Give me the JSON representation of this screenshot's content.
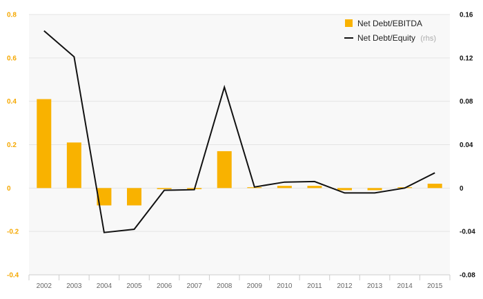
{
  "chart_data": {
    "type": "bar+line",
    "categories": [
      "2002",
      "2003",
      "2004",
      "2005",
      "2006",
      "2007",
      "2008",
      "2009",
      "2010",
      "2011",
      "2012",
      "2013",
      "2014",
      "2015"
    ],
    "series": [
      {
        "name": "Net Debt/EBITDA",
        "type": "bar",
        "axis": "left",
        "color": "#f9b200",
        "values": [
          0.41,
          0.21,
          -0.08,
          -0.08,
          -0.005,
          -0.005,
          0.17,
          0.0,
          0.01,
          0.01,
          -0.01,
          -0.01,
          0.0,
          0.02
        ]
      },
      {
        "name": "Net Debt/Equity",
        "suffix": "(rhs)",
        "type": "line",
        "axis": "right",
        "color": "#111111",
        "values": [
          0.145,
          0.121,
          -0.041,
          -0.038,
          -0.002,
          -0.0015,
          0.093,
          0.001,
          0.0055,
          0.006,
          -0.0045,
          -0.0045,
          0.0,
          0.014
        ]
      }
    ],
    "yleft": {
      "min": -0.4,
      "max": 0.8,
      "ticks": [
        "-0.4",
        "-0.2",
        "0",
        "0.2",
        "0.4",
        "0.6",
        "0.8"
      ],
      "tick_values": [
        -0.4,
        -0.2,
        0,
        0.2,
        0.4,
        0.6,
        0.8
      ]
    },
    "yright": {
      "min": -0.08,
      "max": 0.16,
      "ticks": [
        "-0.08",
        "-0.04",
        "0",
        "0.04",
        "0.08",
        "0.12",
        "0.16"
      ],
      "tick_values": [
        -0.08,
        -0.04,
        0,
        0.04,
        0.08,
        0.12,
        0.16
      ]
    },
    "grid": true,
    "legend": "top-right",
    "title": "",
    "xlabel": "",
    "ylabel": ""
  }
}
